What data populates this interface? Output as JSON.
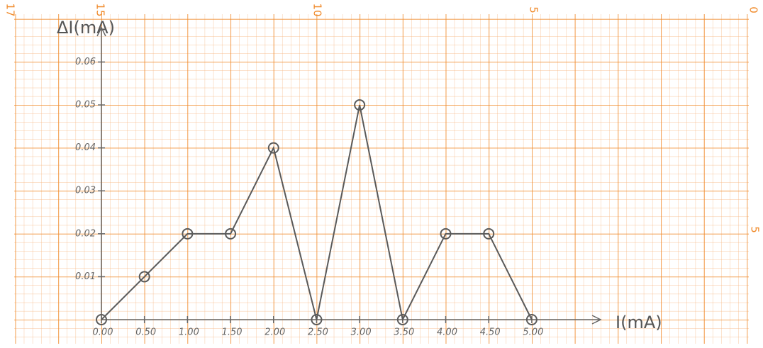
{
  "chart_data": {
    "type": "line",
    "x_label": "I(mA)",
    "y_label": "ΔI(mA)",
    "x": [
      0,
      0.5,
      1,
      1.5,
      2,
      2.5,
      3,
      3.5,
      4,
      4.5,
      5
    ],
    "series": [
      {
        "color": "#5a5a5a",
        "values": [
          0,
          0.01,
          0.02,
          0.02,
          0.04,
          0,
          0.05,
          0,
          0.02,
          0.02,
          0
        ]
      }
    ],
    "xlim": [
      0,
      5.8
    ],
    "ylim": [
      0,
      0.068
    ],
    "xticks": [
      {
        "value": 0,
        "label": "0.00"
      },
      {
        "value": 0.5,
        "label": "0.50"
      },
      {
        "value": 1,
        "label": "1.00"
      },
      {
        "value": 1.5,
        "label": "1.50"
      },
      {
        "value": 2,
        "label": "2.00"
      },
      {
        "value": 2.5,
        "label": "2.50"
      },
      {
        "value": 3,
        "label": "3.00"
      },
      {
        "value": 3.5,
        "label": "3.50"
      },
      {
        "value": 4,
        "label": "4.00"
      },
      {
        "value": 4.5,
        "label": "4.50"
      },
      {
        "value": 5,
        "label": "5.00"
      }
    ],
    "yticks": [
      0.01,
      0.02,
      0.03,
      0.04,
      0.05,
      0.06
    ]
  },
  "paper_labels": {
    "top": [
      "17",
      "15",
      "10",
      "5",
      "0"
    ],
    "right": "5"
  }
}
